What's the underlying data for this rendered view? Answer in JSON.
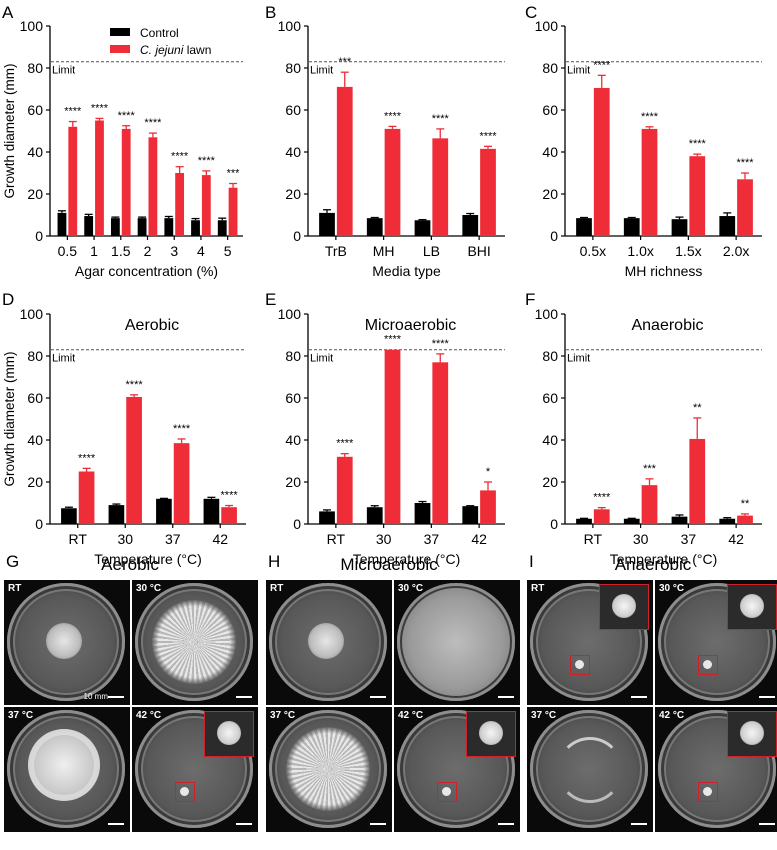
{
  "chart_data": [
    {
      "panel": "A",
      "type": "bar",
      "title": "",
      "xlabel": "Agar concentration  (%)",
      "ylabel": "Growth diameter (mm)",
      "ylim": [
        0,
        100
      ],
      "yticks": [
        0,
        20,
        40,
        60,
        80,
        100
      ],
      "limit": 83,
      "limit_label": "Limit",
      "categories": [
        "0.5",
        "1",
        "1.5",
        "2",
        "3",
        "4",
        "5"
      ],
      "series": [
        {
          "name": "Control",
          "color": "#000000",
          "values": [
            11,
            9.5,
            8.5,
            8.5,
            8.5,
            7.5,
            7.5
          ],
          "errors": [
            1,
            0.8,
            0.5,
            0.5,
            0.8,
            0.8,
            1
          ]
        },
        {
          "name": "C. jejuni lawn",
          "color": "#ee2d38",
          "values": [
            52,
            55,
            51,
            47,
            30,
            29,
            23
          ],
          "errors": [
            2.5,
            1,
            1.5,
            2,
            3,
            2,
            2
          ]
        }
      ],
      "significance": [
        "****",
        "****",
        "****",
        "****",
        "****",
        "****",
        "***"
      ],
      "legend": {
        "placement": "top-left",
        "entries": [
          "Control",
          "C. jejuni lawn"
        ]
      }
    },
    {
      "panel": "B",
      "type": "bar",
      "title": "",
      "xlabel": "Media type",
      "ylabel": "",
      "ylim": [
        0,
        100
      ],
      "yticks": [
        0,
        20,
        40,
        60,
        80,
        100
      ],
      "limit": 83,
      "limit_label": "Limit",
      "categories": [
        "TrB",
        "MH",
        "LB",
        "BHI"
      ],
      "series": [
        {
          "name": "Control",
          "color": "#000000",
          "values": [
            11,
            8.5,
            7.5,
            10
          ],
          "errors": [
            1.5,
            0.3,
            0.3,
            0.7
          ]
        },
        {
          "name": "C. jejuni lawn",
          "color": "#ee2d38",
          "values": [
            71,
            51,
            46.5,
            41.5
          ],
          "errors": [
            7,
            1.2,
            4.5,
            1.2
          ]
        }
      ],
      "significance": [
        "***",
        "****",
        "****",
        "****"
      ]
    },
    {
      "panel": "C",
      "type": "bar",
      "title": "",
      "xlabel": "MH richness",
      "ylabel": "",
      "ylim": [
        0,
        100
      ],
      "yticks": [
        0,
        20,
        40,
        60,
        80,
        100
      ],
      "limit": 83,
      "limit_label": "Limit",
      "categories": [
        "0.5x",
        "1.0x",
        "1.5x",
        "2.0x"
      ],
      "series": [
        {
          "name": "Control",
          "color": "#000000",
          "values": [
            8.5,
            8.5,
            8,
            9.5
          ],
          "errors": [
            0.3,
            0.3,
            1,
            1.5
          ]
        },
        {
          "name": "C. jejuni lawn",
          "color": "#ee2d38",
          "values": [
            70.5,
            51,
            38,
            27
          ],
          "errors": [
            6,
            1,
            1,
            3
          ]
        }
      ],
      "significance": [
        "****",
        "****",
        "****",
        "****"
      ]
    },
    {
      "panel": "D",
      "type": "bar",
      "title": "Aerobic",
      "xlabel": "Temperature (°C)",
      "ylabel": "Growth diameter (mm)",
      "ylim": [
        0,
        100
      ],
      "yticks": [
        0,
        20,
        40,
        60,
        80,
        100
      ],
      "limit": 83,
      "limit_label": "Limit",
      "categories": [
        "RT",
        "30",
        "37",
        "42"
      ],
      "series": [
        {
          "name": "Control",
          "color": "#000000",
          "values": [
            7.5,
            9,
            12,
            12
          ],
          "errors": [
            0.5,
            0.5,
            0.2,
            0.7
          ]
        },
        {
          "name": "C. jejuni lawn",
          "color": "#ee2d38",
          "values": [
            25,
            60.5,
            38.5,
            8
          ],
          "errors": [
            1.5,
            1,
            2,
            0.8
          ]
        }
      ],
      "significance": [
        "****",
        "****",
        "****",
        "****"
      ]
    },
    {
      "panel": "E",
      "type": "bar",
      "title": "Microaerobic",
      "xlabel": "Temperature (°C)",
      "ylabel": "",
      "ylim": [
        0,
        100
      ],
      "yticks": [
        0,
        20,
        40,
        60,
        80,
        100
      ],
      "limit": 83,
      "limit_label": "Limit",
      "categories": [
        "RT",
        "30",
        "37",
        "42"
      ],
      "series": [
        {
          "name": "Control",
          "color": "#000000",
          "values": [
            6,
            8,
            10,
            8.5
          ],
          "errors": [
            0.7,
            0.7,
            0.7,
            0.2
          ]
        },
        {
          "name": "C. jejuni lawn",
          "color": "#ee2d38",
          "values": [
            32,
            83,
            77,
            16
          ],
          "errors": [
            1.5,
            0,
            4,
            4
          ]
        }
      ],
      "significance": [
        "****",
        "****",
        "****",
        "*"
      ]
    },
    {
      "panel": "F",
      "type": "bar",
      "title": "Anaerobic",
      "xlabel": "Temperature (°C)",
      "ylabel": "",
      "ylim": [
        0,
        100
      ],
      "yticks": [
        0,
        20,
        40,
        60,
        80,
        100
      ],
      "limit": 83,
      "limit_label": "Limit",
      "categories": [
        "RT",
        "30",
        "37",
        "42"
      ],
      "series": [
        {
          "name": "Control",
          "color": "#000000",
          "values": [
            2.5,
            2.5,
            3.5,
            2.5
          ],
          "errors": [
            0.2,
            0.2,
            0.8,
            0.5
          ]
        },
        {
          "name": "C. jejuni lawn",
          "color": "#ee2d38",
          "values": [
            7,
            18.5,
            40.5,
            4
          ],
          "errors": [
            0.8,
            3,
            10,
            0.8
          ]
        }
      ],
      "significance": [
        "****",
        "***",
        "**",
        "**"
      ]
    }
  ],
  "photo_panels": [
    {
      "letter": "G",
      "title": "Aerobic",
      "dishes": [
        {
          "label": "RT",
          "colony": "small",
          "scale_label": "10 mm"
        },
        {
          "label": "30 °C",
          "colony": "large-spiky"
        },
        {
          "label": "37 °C",
          "colony": "medium-swirl"
        },
        {
          "label": "42 °C",
          "colony": "tiny-boxed"
        }
      ]
    },
    {
      "letter": "H",
      "title": "Microaerobic",
      "dishes": [
        {
          "label": "RT",
          "colony": "small"
        },
        {
          "label": "30 °C",
          "colony": "full-lawn"
        },
        {
          "label": "37 °C",
          "colony": "large-spiky"
        },
        {
          "label": "42 °C",
          "colony": "tiny-boxed"
        }
      ]
    },
    {
      "letter": "I",
      "title": "Anaerobic",
      "dishes": [
        {
          "label": "RT",
          "colony": "tiny-boxed"
        },
        {
          "label": "30 °C",
          "colony": "tiny-boxed"
        },
        {
          "label": "37 °C",
          "colony": "swirl-only"
        },
        {
          "label": "42 °C",
          "colony": "tiny-boxed"
        }
      ]
    }
  ],
  "panel_letters": [
    "A",
    "B",
    "C",
    "D",
    "E",
    "F"
  ],
  "colors": {
    "control": "#000000",
    "treatment": "#ee2d38",
    "limit_line": "#555555"
  }
}
